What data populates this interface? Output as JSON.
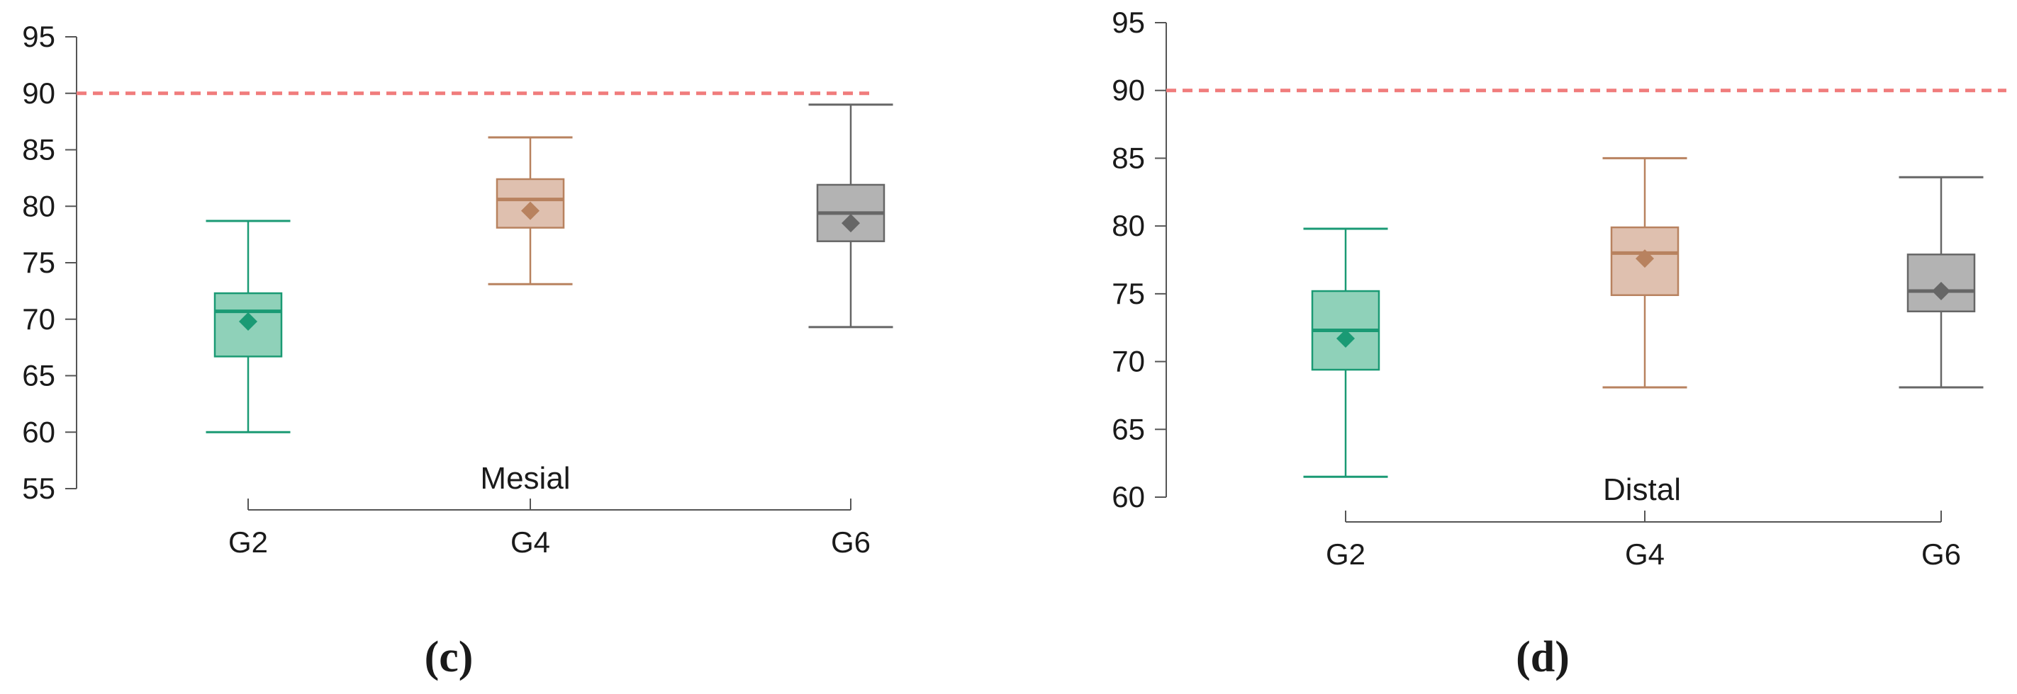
{
  "chart_data": [
    {
      "type": "box",
      "panel_label": "(c)",
      "title": "Mesial",
      "categories": [
        "G2",
        "G4",
        "G6"
      ],
      "yticks": [
        55,
        60,
        65,
        70,
        75,
        80,
        85,
        90,
        95
      ],
      "ylim": [
        55,
        95
      ],
      "reference_line": 90,
      "reference_color": "#f07c7c",
      "boxes": [
        {
          "category": "G2",
          "whisker_low": 60,
          "q1": 66.7,
          "median": 70.7,
          "q3": 72.3,
          "whisker_high": 78.7,
          "mean": 69.8,
          "color": "#1a9a74",
          "fill": "#8fd1b9"
        },
        {
          "category": "G4",
          "whisker_low": 73.1,
          "q1": 78.1,
          "median": 80.6,
          "q3": 82.4,
          "whisker_high": 86.1,
          "mean": 79.6,
          "color": "#b8825f",
          "fill": "#dfc0af"
        },
        {
          "category": "G6",
          "whisker_low": 69.3,
          "q1": 76.9,
          "median": 79.4,
          "q3": 81.9,
          "whisker_high": 89.0,
          "mean": 78.5,
          "color": "#666666",
          "fill": "#b3b3b3"
        }
      ]
    },
    {
      "type": "box",
      "panel_label": "(d)",
      "title": "Distal",
      "categories": [
        "G2",
        "G4",
        "G6"
      ],
      "yticks": [
        60,
        65,
        70,
        75,
        80,
        85,
        90,
        95
      ],
      "ylim": [
        60,
        95
      ],
      "reference_line": 90,
      "reference_color": "#f07c7c",
      "boxes": [
        {
          "category": "G2",
          "whisker_low": 61.5,
          "q1": 69.4,
          "median": 72.3,
          "q3": 75.2,
          "whisker_high": 79.8,
          "mean": 71.7,
          "color": "#1a9a74",
          "fill": "#8fd1b9"
        },
        {
          "category": "G4",
          "whisker_low": 68.1,
          "q1": 74.9,
          "median": 78.0,
          "q3": 79.9,
          "whisker_high": 85.0,
          "mean": 77.6,
          "color": "#b8825f",
          "fill": "#dfc0af"
        },
        {
          "category": "G6",
          "whisker_low": 68.1,
          "q1": 73.7,
          "median": 75.2,
          "q3": 77.9,
          "whisker_high": 83.6,
          "mean": 75.2,
          "color": "#666666",
          "fill": "#b3b3b3"
        }
      ]
    }
  ]
}
